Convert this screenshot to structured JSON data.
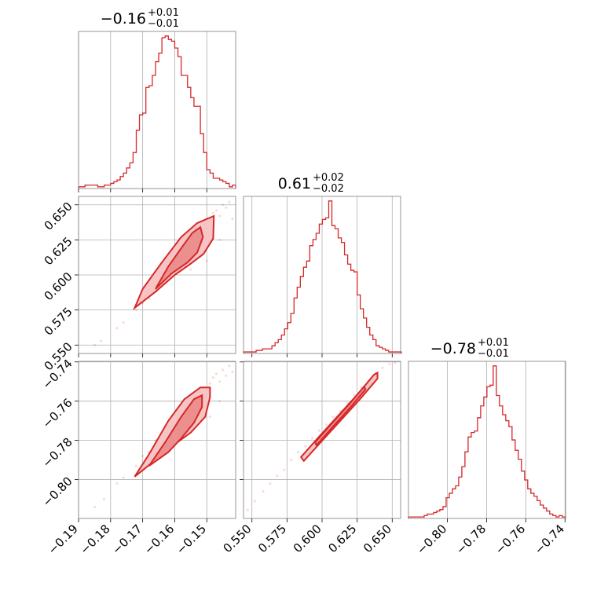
{
  "chart_data": {
    "type": "corner",
    "color": "#d62728",
    "grid": true,
    "params": [
      {
        "id": "p1",
        "range": [
          -0.19,
          -0.141
        ],
        "ticks": [
          -0.19,
          -0.18,
          -0.17,
          -0.16,
          -0.15
        ],
        "tick_labels": [
          "−0.19",
          "−0.18",
          "−0.17",
          "−0.16",
          "−0.15"
        ],
        "title": {
          "median": "−0.16",
          "plus": "+0.01",
          "minus": "−0.01"
        }
      },
      {
        "id": "p2",
        "range": [
          0.544,
          0.656
        ],
        "ticks": [
          0.55,
          0.575,
          0.6,
          0.625,
          0.65
        ],
        "tick_labels": [
          "0.550",
          "0.575",
          "0.600",
          "0.625",
          "0.650"
        ],
        "title": {
          "median": "0.61",
          "plus": "+0.02",
          "minus": "−0.02"
        }
      },
      {
        "id": "p3",
        "range": [
          -0.8198,
          -0.7397
        ],
        "ticks": [
          -0.8,
          -0.78,
          -0.76,
          -0.74
        ],
        "tick_labels": [
          "−0.80",
          "−0.78",
          "−0.76",
          "−0.74"
        ],
        "title": {
          "median": "−0.78",
          "plus": "+0.01",
          "minus": "−0.01"
        }
      }
    ],
    "histograms": [
      {
        "param": "p1",
        "edges_start": -0.19,
        "bin_width": 0.001,
        "counts": [
          1,
          1,
          2,
          2,
          2,
          2,
          1,
          1,
          2,
          2,
          3,
          4,
          5,
          7,
          9,
          12,
          15,
          21,
          34,
          43,
          44,
          59,
          60,
          66,
          74,
          79,
          88,
          89,
          87,
          86,
          82,
          77,
          66,
          66,
          59,
          53,
          48,
          48,
          32,
          21,
          11,
          9,
          6,
          6,
          5,
          4,
          3,
          1,
          2
        ]
      },
      {
        "param": "p2",
        "edges_start": 0.544,
        "bin_width": 0.00225,
        "counts": [
          1,
          1,
          1,
          1,
          2,
          2,
          3,
          3,
          3,
          5,
          7,
          9,
          12,
          16,
          20,
          26,
          36,
          43,
          50,
          56,
          60,
          70,
          74,
          78,
          84,
          87,
          88,
          99,
          83,
          81,
          75,
          72,
          64,
          58,
          54,
          53,
          38,
          29,
          23,
          17,
          12,
          9,
          5,
          4,
          3,
          2,
          1,
          1,
          1,
          1
        ]
      },
      {
        "param": "p3",
        "edges_start": -0.8198,
        "bin_width": 0.0016,
        "counts": [
          1,
          1,
          1,
          1,
          1,
          2,
          3,
          3,
          4,
          5,
          6,
          8,
          14,
          17,
          20,
          22,
          28,
          35,
          45,
          55,
          58,
          59,
          68,
          76,
          82,
          89,
          90,
          103,
          83,
          76,
          70,
          66,
          62,
          53,
          46,
          40,
          32,
          26,
          20,
          17,
          15,
          12,
          9,
          7,
          5,
          3,
          2,
          1,
          2,
          1
        ]
      }
    ],
    "pairs": [
      {
        "x": "p1",
        "y": "p2",
        "points": [
          [
            -0.185,
            0.55
          ],
          [
            -0.183,
            0.553
          ],
          [
            -0.178,
            0.562
          ],
          [
            -0.176,
            0.566
          ],
          [
            -0.172,
            0.575
          ],
          [
            -0.17,
            0.58
          ],
          [
            -0.168,
            0.583
          ],
          [
            -0.167,
            0.59
          ],
          [
            -0.165,
            0.593
          ],
          [
            -0.163,
            0.6
          ],
          [
            -0.162,
            0.598
          ],
          [
            -0.16,
            0.605
          ],
          [
            -0.159,
            0.612
          ],
          [
            -0.158,
            0.61
          ],
          [
            -0.157,
            0.615
          ],
          [
            -0.156,
            0.618
          ],
          [
            -0.155,
            0.62
          ],
          [
            -0.154,
            0.625
          ],
          [
            -0.153,
            0.628
          ],
          [
            -0.152,
            0.633
          ],
          [
            -0.151,
            0.638
          ],
          [
            -0.15,
            0.64
          ],
          [
            -0.149,
            0.635
          ],
          [
            -0.148,
            0.644
          ],
          [
            -0.147,
            0.646
          ],
          [
            -0.146,
            0.642
          ],
          [
            -0.145,
            0.65
          ],
          [
            -0.144,
            0.648
          ],
          [
            -0.143,
            0.652
          ],
          [
            -0.142,
            0.64
          ],
          [
            -0.15,
            0.61
          ],
          [
            -0.155,
            0.604
          ],
          [
            -0.146,
            0.625
          ],
          [
            -0.148,
            0.638
          ]
        ],
        "contour_outer": [
          [
            -0.1725,
            0.5765
          ],
          [
            -0.166,
            0.588
          ],
          [
            -0.16,
            0.6
          ],
          [
            -0.155,
            0.608
          ],
          [
            -0.151,
            0.615
          ],
          [
            -0.148,
            0.626
          ],
          [
            -0.1478,
            0.642
          ],
          [
            -0.153,
            0.637
          ],
          [
            -0.158,
            0.627
          ],
          [
            -0.164,
            0.609
          ],
          [
            -0.17,
            0.59
          ],
          [
            -0.1725,
            0.5765
          ]
        ],
        "contour_inner": [
          [
            -0.166,
            0.59
          ],
          [
            -0.161,
            0.601
          ],
          [
            -0.156,
            0.609
          ],
          [
            -0.153,
            0.616
          ],
          [
            -0.1512,
            0.627
          ],
          [
            -0.152,
            0.634
          ],
          [
            -0.1545,
            0.63
          ],
          [
            -0.158,
            0.619
          ],
          [
            -0.162,
            0.606
          ],
          [
            -0.166,
            0.59
          ]
        ]
      },
      {
        "x": "p1",
        "y": "p3",
        "points": [
          [
            -0.185,
            -0.814
          ],
          [
            -0.182,
            -0.81
          ],
          [
            -0.178,
            -0.802
          ],
          [
            -0.176,
            -0.799
          ],
          [
            -0.172,
            -0.793
          ],
          [
            -0.17,
            -0.788
          ],
          [
            -0.168,
            -0.786
          ],
          [
            -0.166,
            -0.78
          ],
          [
            -0.164,
            -0.779
          ],
          [
            -0.162,
            -0.774
          ],
          [
            -0.16,
            -0.77
          ],
          [
            -0.159,
            -0.766
          ],
          [
            -0.158,
            -0.768
          ],
          [
            -0.156,
            -0.762
          ],
          [
            -0.154,
            -0.758
          ],
          [
            -0.153,
            -0.761
          ],
          [
            -0.152,
            -0.756
          ],
          [
            -0.151,
            -0.753
          ],
          [
            -0.15,
            -0.755
          ],
          [
            -0.149,
            -0.751
          ],
          [
            -0.148,
            -0.748
          ],
          [
            -0.147,
            -0.746
          ],
          [
            -0.146,
            -0.75
          ],
          [
            -0.145,
            -0.744
          ],
          [
            -0.144,
            -0.747
          ],
          [
            -0.143,
            -0.742
          ],
          [
            -0.142,
            -0.745
          ],
          [
            -0.149,
            -0.768
          ],
          [
            -0.146,
            -0.76
          ]
        ],
        "contour_outer": [
          [
            -0.1725,
            -0.7985
          ],
          [
            -0.166,
            -0.79
          ],
          [
            -0.16,
            -0.782
          ],
          [
            -0.155,
            -0.776
          ],
          [
            -0.1505,
            -0.768
          ],
          [
            -0.149,
            -0.758
          ],
          [
            -0.149,
            -0.753
          ],
          [
            -0.152,
            -0.753
          ],
          [
            -0.157,
            -0.759
          ],
          [
            -0.162,
            -0.77
          ],
          [
            -0.168,
            -0.787
          ],
          [
            -0.1725,
            -0.7985
          ]
        ],
        "contour_inner": [
          [
            -0.168,
            -0.793
          ],
          [
            -0.162,
            -0.786
          ],
          [
            -0.158,
            -0.779
          ],
          [
            -0.154,
            -0.771
          ],
          [
            -0.1515,
            -0.763
          ],
          [
            -0.1515,
            -0.757
          ],
          [
            -0.154,
            -0.759
          ],
          [
            -0.158,
            -0.768
          ],
          [
            -0.163,
            -0.781
          ],
          [
            -0.168,
            -0.793
          ]
        ]
      },
      {
        "x": "p2",
        "y": "p3",
        "points": [
          [
            0.547,
            -0.8155
          ],
          [
            0.552,
            -0.811
          ],
          [
            0.558,
            -0.806
          ],
          [
            0.563,
            -0.802
          ],
          [
            0.568,
            -0.798
          ],
          [
            0.573,
            -0.795
          ],
          [
            0.578,
            -0.79
          ],
          [
            0.583,
            -0.786
          ],
          [
            0.588,
            -0.783
          ],
          [
            0.593,
            -0.779
          ],
          [
            0.598,
            -0.775
          ],
          [
            0.603,
            -0.772
          ],
          [
            0.608,
            -0.768
          ],
          [
            0.613,
            -0.765
          ],
          [
            0.618,
            -0.761
          ],
          [
            0.623,
            -0.757
          ],
          [
            0.628,
            -0.753
          ],
          [
            0.633,
            -0.75
          ],
          [
            0.638,
            -0.746
          ],
          [
            0.643,
            -0.743
          ],
          [
            0.648,
            -0.741
          ],
          [
            0.652,
            -0.7405
          ]
        ],
        "contour_outer": [
          [
            0.585,
            -0.7885
          ],
          [
            0.598,
            -0.778
          ],
          [
            0.612,
            -0.767
          ],
          [
            0.626,
            -0.756
          ],
          [
            0.637,
            -0.7465
          ],
          [
            0.6395,
            -0.7455
          ],
          [
            0.6395,
            -0.7485
          ],
          [
            0.627,
            -0.759
          ],
          [
            0.613,
            -0.77
          ],
          [
            0.599,
            -0.781
          ],
          [
            0.587,
            -0.7905
          ],
          [
            0.585,
            -0.7885
          ]
        ],
        "contour_inner": [
          [
            0.595,
            -0.781
          ],
          [
            0.608,
            -0.7705
          ],
          [
            0.62,
            -0.761
          ],
          [
            0.63,
            -0.7525
          ],
          [
            0.631,
            -0.754
          ],
          [
            0.621,
            -0.7625
          ],
          [
            0.609,
            -0.772
          ],
          [
            0.596,
            -0.7825
          ],
          [
            0.595,
            -0.781
          ]
        ]
      }
    ]
  }
}
